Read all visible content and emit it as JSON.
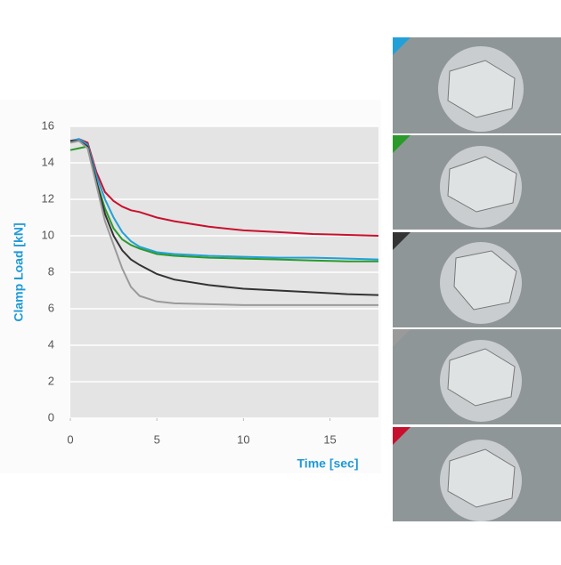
{
  "chart_data": {
    "type": "line",
    "x_label": "Time [sec]",
    "y_label": "Clamp Load [kN]",
    "x": [
      0,
      0.5,
      1,
      1.5,
      2,
      2.5,
      3,
      3.5,
      4,
      5,
      6,
      8,
      10,
      12,
      14,
      16,
      17.8
    ],
    "series": [
      {
        "color": "#c8102e",
        "values": [
          15.2,
          15.3,
          15.1,
          13.5,
          12.4,
          11.9,
          11.6,
          11.4,
          11.3,
          11.0,
          10.8,
          10.5,
          10.3,
          10.2,
          10.1,
          10.05,
          10.0
        ]
      },
      {
        "color": "#22a0d8",
        "values": [
          15.2,
          15.3,
          15.0,
          13.3,
          12.0,
          11.0,
          10.2,
          9.7,
          9.4,
          9.1,
          9.0,
          8.9,
          8.85,
          8.8,
          8.8,
          8.75,
          8.7
        ]
      },
      {
        "color": "#2a9a2a",
        "values": [
          14.7,
          14.8,
          14.9,
          13.0,
          11.5,
          10.4,
          9.8,
          9.5,
          9.3,
          9.0,
          8.9,
          8.8,
          8.75,
          8.7,
          8.65,
          8.6,
          8.6
        ]
      },
      {
        "color": "#333333",
        "values": [
          15.2,
          15.2,
          14.9,
          13.0,
          11.2,
          10.0,
          9.2,
          8.7,
          8.4,
          7.9,
          7.6,
          7.3,
          7.1,
          7.0,
          6.9,
          6.8,
          6.75
        ]
      },
      {
        "color": "#9a9a9a",
        "values": [
          15.1,
          15.2,
          14.8,
          12.8,
          10.8,
          9.5,
          8.2,
          7.2,
          6.7,
          6.4,
          6.3,
          6.25,
          6.2,
          6.2,
          6.2,
          6.2,
          6.2
        ]
      }
    ],
    "photo_marker_order": [
      1,
      2,
      3,
      4,
      0
    ],
    "xlim": [
      0,
      17.8
    ],
    "ylim": [
      0,
      16
    ],
    "xticks": [
      0,
      5,
      10,
      15
    ],
    "yticks": [
      0,
      2,
      4,
      6,
      8,
      10,
      12,
      14,
      16
    ],
    "grid": true
  }
}
